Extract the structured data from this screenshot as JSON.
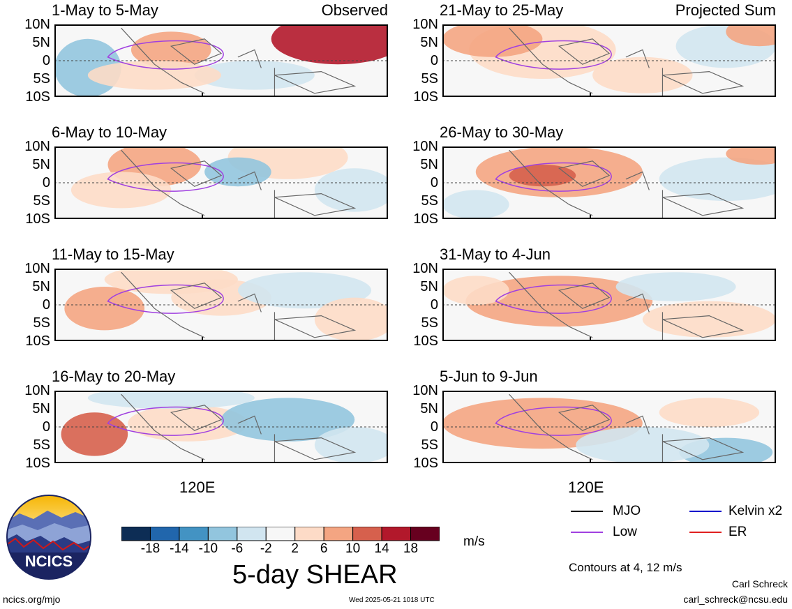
{
  "panels_left": [
    {
      "title": "1-May to 5-May",
      "tag": "Observed"
    },
    {
      "title": "6-May to 10-May",
      "tag": ""
    },
    {
      "title": "11-May to 15-May",
      "tag": ""
    },
    {
      "title": "16-May to 20-May",
      "tag": ""
    }
  ],
  "panels_right": [
    {
      "title": "21-May to 25-May",
      "tag": "Projected Sum"
    },
    {
      "title": "26-May to 30-May",
      "tag": ""
    },
    {
      "title": "31-May to 4-Jun",
      "tag": ""
    },
    {
      "title": "5-Jun to 9-Jun",
      "tag": ""
    }
  ],
  "y_ticks": [
    "10N",
    "5N",
    "0",
    "5S",
    "10S"
  ],
  "x_tick": "120E",
  "colorbar": {
    "ticks": [
      "-18",
      "-14",
      "-10",
      "-6",
      "-2",
      "2",
      "6",
      "10",
      "14",
      "18"
    ],
    "colors": [
      "#0d2d55",
      "#2166ac",
      "#4393c3",
      "#92c5de",
      "#d1e5f0",
      "#f7f7f7",
      "#fddbc7",
      "#f4a582",
      "#d6604d",
      "#b2182b",
      "#67001f"
    ],
    "unit": "m/s",
    "title": "5-day SHEAR"
  },
  "legend": {
    "items": [
      {
        "label": "MJO",
        "color": "#000000"
      },
      {
        "label": "Kelvin x2",
        "color": "#0000cc"
      },
      {
        "label": "Low",
        "color": "#a040e0"
      },
      {
        "label": "ER",
        "color": "#e02020"
      }
    ],
    "note": "Contours at 4, 12 m/s"
  },
  "logo_text": "NCICS",
  "footer": {
    "url": "ncics.org/mjo",
    "timestamp": "Wed 2025-05-21 1018 UTC",
    "author": "Carl Schreck",
    "email": "carl_schreck@ncsu.edu"
  }
}
